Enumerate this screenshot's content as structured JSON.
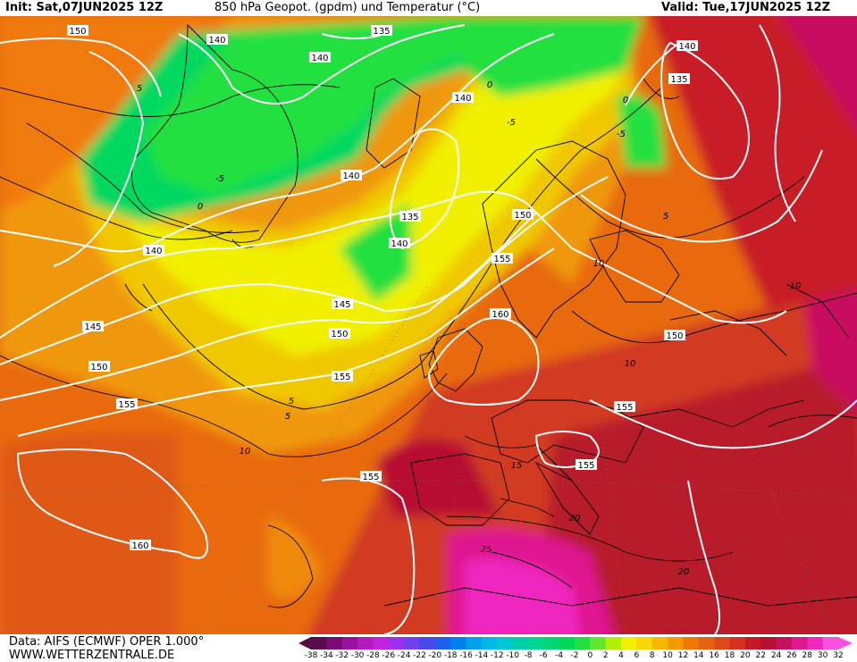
{
  "header": {
    "init": "Init: Sat,07JUN2025 12Z",
    "title": "850 hPa Geopot. (gpdm) und Temperatur (°C)",
    "valid": "Valid: Tue,17JUN2025 12Z"
  },
  "footer": {
    "data_source": "Data: AIFS (ECMWF) OPER 1.000°",
    "site": "WWW.WETTERZENTRALE.DE"
  },
  "legend": {
    "ticks": [
      "-38",
      "-34",
      "-32",
      "-30",
      "-28",
      "-26",
      "-24",
      "-22",
      "-20",
      "-18",
      "-16",
      "-14",
      "-12",
      "-10",
      "-8",
      "-6",
      "-4",
      "-2",
      "0",
      "2",
      "4",
      "6",
      "8",
      "10",
      "12",
      "14",
      "16",
      "18",
      "20",
      "22",
      "24",
      "26",
      "28",
      "30",
      "32"
    ],
    "colors": [
      "#5a0a4a",
      "#7a0a7a",
      "#9a10a0",
      "#b418c0",
      "#c820e0",
      "#a030f0",
      "#7040f0",
      "#4848f0",
      "#2060f0",
      "#0080f0",
      "#00a0f0",
      "#00b8e8",
      "#00c8d0",
      "#00d0a8",
      "#00d890",
      "#00d878",
      "#00d858",
      "#20e040",
      "#60e830",
      "#b0f000",
      "#f0f000",
      "#f8d800",
      "#f8b800",
      "#f89800",
      "#f07800",
      "#e86010",
      "#e04818",
      "#d83020",
      "#c81828",
      "#b81030",
      "#c81060",
      "#e01890",
      "#f028c0",
      "#f850e0"
    ]
  },
  "geopotential_labels": [
    {
      "text": "150"
    },
    {
      "text": "140"
    },
    {
      "text": "140"
    },
    {
      "text": "135"
    },
    {
      "text": "140"
    },
    {
      "text": "140"
    },
    {
      "text": "135"
    },
    {
      "text": "140"
    },
    {
      "text": "140"
    },
    {
      "text": "135"
    },
    {
      "text": "140"
    },
    {
      "text": "150"
    },
    {
      "text": "155"
    },
    {
      "text": "145"
    },
    {
      "text": "160"
    },
    {
      "text": "150"
    },
    {
      "text": "145"
    },
    {
      "text": "150"
    },
    {
      "text": "155"
    },
    {
      "text": "155"
    },
    {
      "text": "150"
    },
    {
      "text": "155"
    },
    {
      "text": "155"
    },
    {
      "text": "155"
    },
    {
      "text": "160"
    }
  ],
  "temperature_labels": [
    {
      "text": "5"
    },
    {
      "text": "-5"
    },
    {
      "text": "0"
    },
    {
      "text": "-5"
    },
    {
      "text": "0"
    },
    {
      "text": "0"
    },
    {
      "text": "5"
    },
    {
      "text": "5"
    },
    {
      "text": "-5"
    },
    {
      "text": "10"
    },
    {
      "text": "10"
    },
    {
      "text": "10"
    },
    {
      "text": "5"
    },
    {
      "text": "10"
    },
    {
      "text": "15"
    },
    {
      "text": "20"
    },
    {
      "text": "25"
    },
    {
      "text": "20"
    }
  ]
}
